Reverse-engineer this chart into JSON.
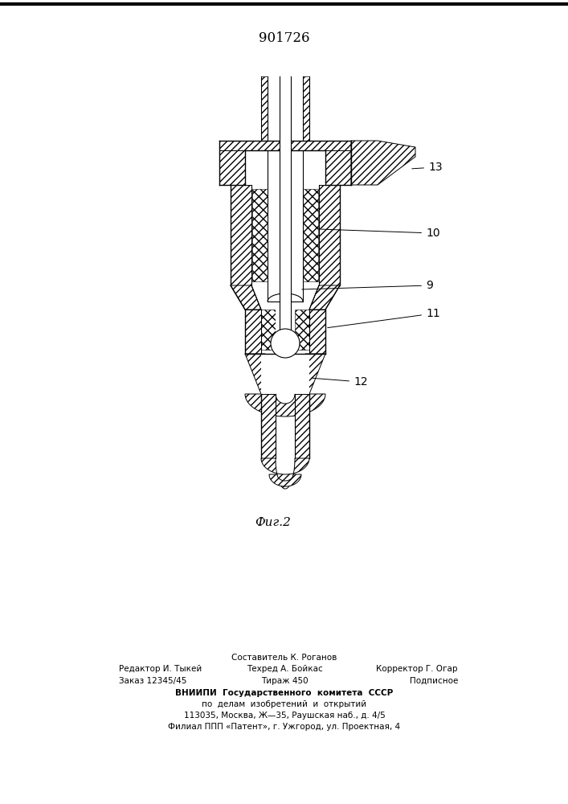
{
  "patent_number": "901726",
  "fig_label": "Фиг.2",
  "footer_line1_left": "Редактор И. Тыкей",
  "footer_line2_left": "Заказ 12345/45",
  "footer_line1_center_top": "Составитель К. Роганов",
  "footer_line1_center": "Техред А. Бойкас",
  "footer_line2_center": "Тираж 450",
  "footer_line1_right": "Корректор Г. Огар",
  "footer_line2_right": "Подписное",
  "footer_vnipi1": "ВНИИПИ  Государственного  комитета  СССР",
  "footer_vnipi2": "по  делам  изобретений  и  открытий",
  "footer_vnipi3": "113035, Москва, Ж—35, Раушская наб., д. 4/5",
  "footer_vnipi4": "Филиал ППП «Патент», г. Ужгород, ул. Проектная, 4",
  "bg_color": "#ffffff"
}
